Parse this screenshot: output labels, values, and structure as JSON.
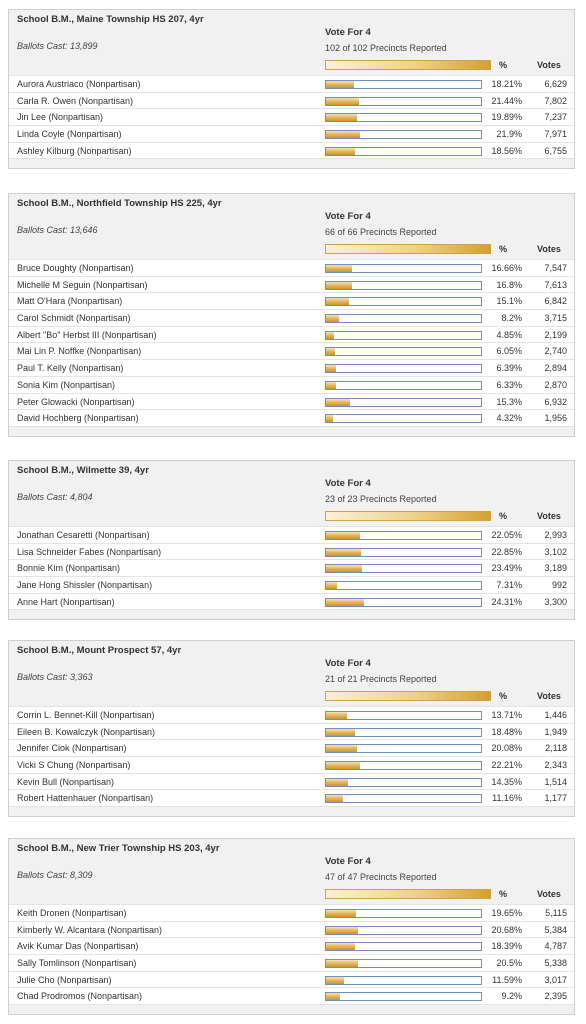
{
  "races": [
    {
      "title": "School B.M., Maine Township HS 207, 4yr",
      "ballots": "Ballots Cast: 13,899",
      "vote_for": "Vote For 4",
      "reported": "102 of 102 Precincts Reported",
      "pct_header": "%",
      "votes_header": "Votes",
      "candidates": [
        {
          "name": "Aurora Austriaco (Nonpartisan)",
          "pct": "18.21%",
          "votes": "6,629",
          "share": 0.1821
        },
        {
          "name": "Carla R. Owen (Nonpartisan)",
          "pct": "21.44%",
          "votes": "7,802",
          "share": 0.2144
        },
        {
          "name": "Jin Lee (Nonpartisan)",
          "pct": "19.89%",
          "votes": "7,237",
          "share": 0.1989
        },
        {
          "name": "Linda Coyle (Nonpartisan)",
          "pct": "21.9%",
          "votes": "7,971",
          "share": 0.219
        },
        {
          "name": "Ashley Kilburg (Nonpartisan)",
          "pct": "18.56%",
          "votes": "6,755",
          "share": 0.1856
        }
      ]
    },
    {
      "title": "School B.M., Northfield Township HS 225, 4yr",
      "ballots": "Ballots Cast: 13,646",
      "vote_for": "Vote For 4",
      "reported": "66 of 66 Precincts Reported",
      "pct_header": "%",
      "votes_header": "Votes",
      "candidates": [
        {
          "name": "Bruce Doughty (Nonpartisan)",
          "pct": "16.66%",
          "votes": "7,547",
          "share": 0.1666
        },
        {
          "name": "Michelle M Seguin (Nonpartisan)",
          "pct": "16.8%",
          "votes": "7,613",
          "share": 0.168
        },
        {
          "name": "Matt O'Hara (Nonpartisan)",
          "pct": "15.1%",
          "votes": "6,842",
          "share": 0.151
        },
        {
          "name": "Carol Schmidt (Nonpartisan)",
          "pct": "8.2%",
          "votes": "3,715",
          "share": 0.082
        },
        {
          "name": "Albert \"Bo\" Herbst III (Nonpartisan)",
          "pct": "4.85%",
          "votes": "2,199",
          "share": 0.0485
        },
        {
          "name": "Mai Lin P. Noffke (Nonpartisan)",
          "pct": "6.05%",
          "votes": "2,740",
          "share": 0.0605
        },
        {
          "name": "Paul T. Kelly (Nonpartisan)",
          "pct": "6.39%",
          "votes": "2,894",
          "share": 0.0639
        },
        {
          "name": "Sonia Kim (Nonpartisan)",
          "pct": "6.33%",
          "votes": "2,870",
          "share": 0.0633
        },
        {
          "name": "Peter Glowacki (Nonpartisan)",
          "pct": "15.3%",
          "votes": "6,932",
          "share": 0.153
        },
        {
          "name": "David Hochberg (Nonpartisan)",
          "pct": "4.32%",
          "votes": "1,956",
          "share": 0.0432
        }
      ]
    },
    {
      "title": "School B.M., Wilmette 39, 4yr",
      "ballots": "Ballots Cast: 4,804",
      "vote_for": "Vote For 4",
      "reported": "23 of 23 Precincts Reported",
      "pct_header": "%",
      "votes_header": "Votes",
      "candidates": [
        {
          "name": "Jonathan Cesaretti (Nonpartisan)",
          "pct": "22.05%",
          "votes": "2,993",
          "share": 0.2205
        },
        {
          "name": "Lisa Schneider Fabes (Nonpartisan)",
          "pct": "22.85%",
          "votes": "3,102",
          "share": 0.2285
        },
        {
          "name": "Bonnie Kim (Nonpartisan)",
          "pct": "23.49%",
          "votes": "3,189",
          "share": 0.2349
        },
        {
          "name": "Jane Hong Shissler (Nonpartisan)",
          "pct": "7.31%",
          "votes": "992",
          "share": 0.0731
        },
        {
          "name": "Anne Hart (Nonpartisan)",
          "pct": "24.31%",
          "votes": "3,300",
          "share": 0.2431
        }
      ]
    },
    {
      "title": "School B.M., Mount Prospect 57, 4yr",
      "ballots": "Ballots Cast: 3,363",
      "vote_for": "Vote For 4",
      "reported": "21 of 21 Precincts Reported",
      "pct_header": "%",
      "votes_header": "Votes",
      "candidates": [
        {
          "name": "Corrin L. Bennet-Kill (Nonpartisan)",
          "pct": "13.71%",
          "votes": "1,446",
          "share": 0.1371
        },
        {
          "name": "Eileen B. Kowalczyk (Nonpartisan)",
          "pct": "18.48%",
          "votes": "1,949",
          "share": 0.1848
        },
        {
          "name": "Jennifer Ciok (Nonpartisan)",
          "pct": "20.08%",
          "votes": "2,118",
          "share": 0.2008
        },
        {
          "name": "Vicki S Chung (Nonpartisan)",
          "pct": "22.21%",
          "votes": "2,343",
          "share": 0.2221
        },
        {
          "name": "Kevin Bull (Nonpartisan)",
          "pct": "14.35%",
          "votes": "1,514",
          "share": 0.1435
        },
        {
          "name": "Robert Hattenhauer (Nonpartisan)",
          "pct": "11.16%",
          "votes": "1,177",
          "share": 0.1116
        }
      ]
    },
    {
      "title": "School B.M., New Trier Township HS 203, 4yr",
      "ballots": "Ballots Cast: 8,309",
      "vote_for": "Vote For 4",
      "reported": "47 of 47 Precincts Reported",
      "pct_header": "%",
      "votes_header": "Votes",
      "candidates": [
        {
          "name": "Keith Dronen (Nonpartisan)",
          "pct": "19.65%",
          "votes": "5,115",
          "share": 0.1965
        },
        {
          "name": "Kimberly W. Alcantara (Nonpartisan)",
          "pct": "20.68%",
          "votes": "5,384",
          "share": 0.2068
        },
        {
          "name": "Avik Kumar Das (Nonpartisan)",
          "pct": "18.39%",
          "votes": "4,787",
          "share": 0.1839
        },
        {
          "name": "Sally Tomlinson (Nonpartisan)",
          "pct": "20.5%",
          "votes": "5,338",
          "share": 0.205
        },
        {
          "name": "Julie Cho (Nonpartisan)",
          "pct": "11.59%",
          "votes": "3,017",
          "share": 0.1159
        },
        {
          "name": "Chad Prodromos (Nonpartisan)",
          "pct": "9.2%",
          "votes": "2,395",
          "share": 0.092
        }
      ]
    }
  ]
}
